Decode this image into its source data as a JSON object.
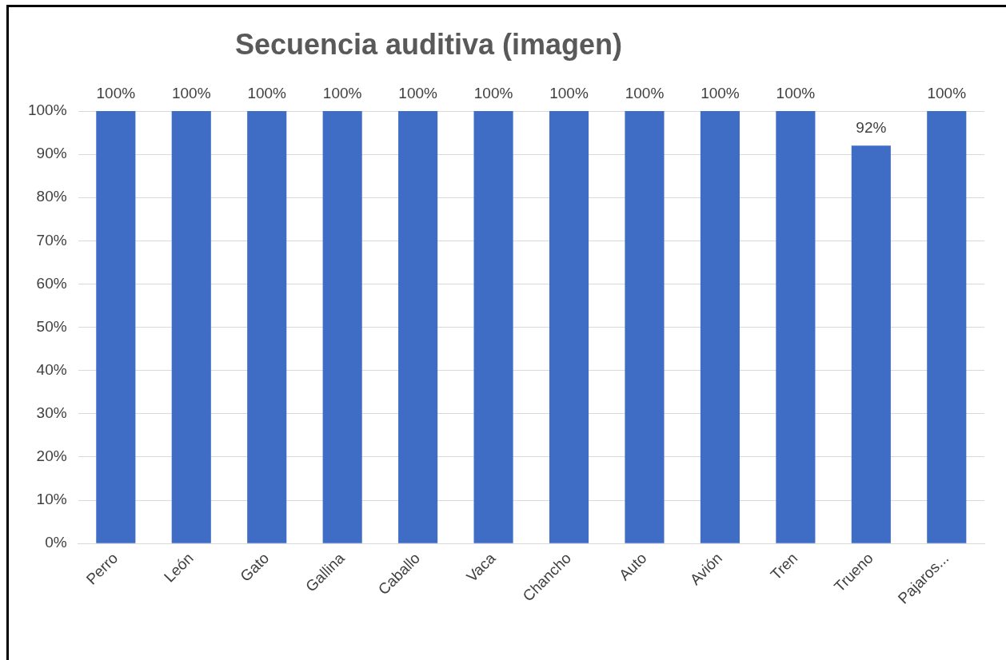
{
  "chart_data": {
    "type": "bar",
    "title": "Secuencia auditiva (imagen)",
    "categories": [
      "Perro",
      "León",
      "Gato",
      "Gallina",
      "Caballo",
      "Vaca",
      "Chancho",
      "Auto",
      "Avión",
      "Tren",
      "Trueno",
      "Pajaros..."
    ],
    "values": [
      100,
      100,
      100,
      100,
      100,
      100,
      100,
      100,
      100,
      100,
      92,
      100
    ],
    "value_labels": [
      "100%",
      "100%",
      "100%",
      "100%",
      "100%",
      "100%",
      "100%",
      "100%",
      "100%",
      "100%",
      "92%",
      "100%"
    ],
    "color": "#3f6dc6",
    "ylim": [
      0,
      100
    ],
    "yticks": [
      {
        "value": 0,
        "label": "0%"
      },
      {
        "value": 10,
        "label": "10%"
      },
      {
        "value": 20,
        "label": "20%"
      },
      {
        "value": 30,
        "label": "30%"
      },
      {
        "value": 40,
        "label": "40%"
      },
      {
        "value": 50,
        "label": "50%"
      },
      {
        "value": 60,
        "label": "60%"
      },
      {
        "value": 70,
        "label": "70%"
      },
      {
        "value": 80,
        "label": "80%"
      },
      {
        "value": 90,
        "label": "90%"
      },
      {
        "value": 100,
        "label": "100%"
      }
    ],
    "grid": "y",
    "legend": false
  }
}
